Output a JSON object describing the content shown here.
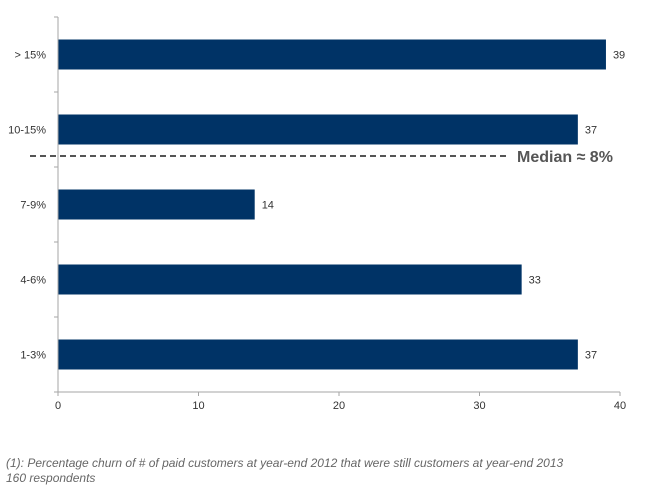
{
  "chart_data": {
    "type": "bar",
    "orientation": "horizontal",
    "categories": [
      "> 15%",
      "10-15%",
      "7-9%",
      "4-6%",
      "1-3%"
    ],
    "values": [
      39,
      37,
      14,
      33,
      37
    ],
    "data_labels": [
      "39",
      "37",
      "14",
      "33",
      "37"
    ],
    "xlim": [
      0,
      40
    ],
    "x_ticks": [
      0,
      10,
      20,
      30,
      40
    ],
    "x_tick_labels": [
      "0",
      "10",
      "20",
      "30",
      "40"
    ],
    "grid": false,
    "bar_color": "#003366",
    "median_line": {
      "label": "Median ≈ 8%",
      "between_categories": [
        "10-15%",
        "7-9%"
      ],
      "style": "dashed",
      "color": "#555555"
    }
  },
  "footnote": {
    "line1": "(1): Percentage churn of # of paid customers at year-end 2012 that were still customers at year-end 2013",
    "line2": "160 respondents"
  }
}
